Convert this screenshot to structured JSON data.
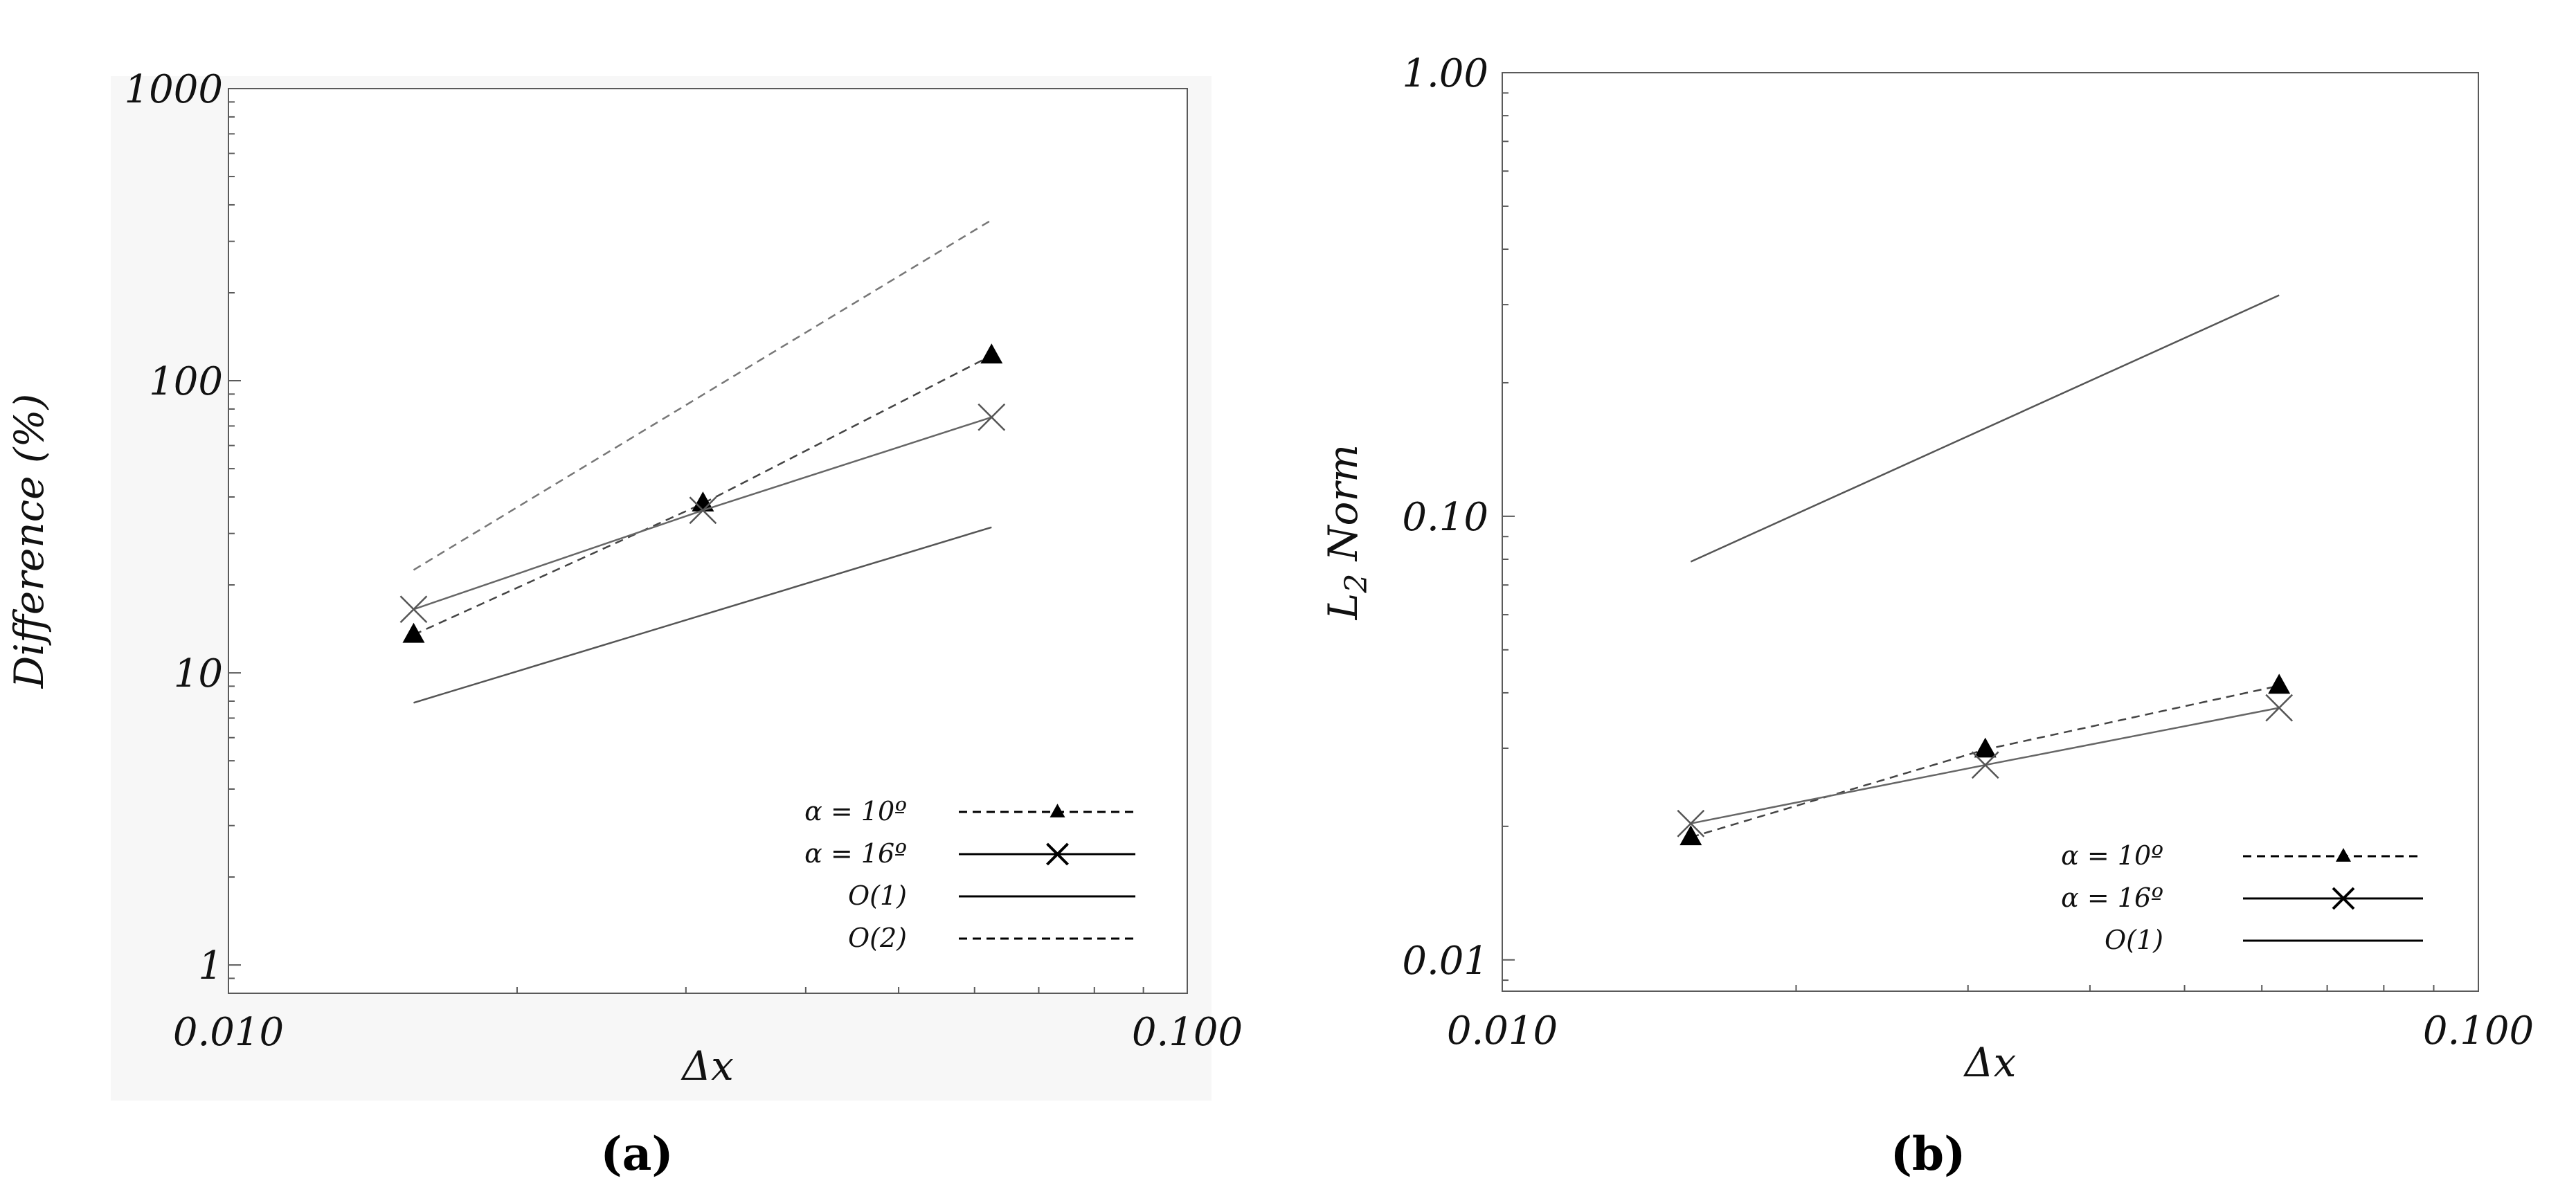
{
  "chart_data": [
    {
      "type": "line",
      "panel_label": "(a)",
      "xlabel": "Δx",
      "ylabel": "Difference (%)",
      "x_scale": "log",
      "y_scale": "log",
      "xlim": [
        0.01,
        0.1
      ],
      "ylim": [
        0.8,
        1000
      ],
      "x_ticks": [
        0.01,
        0.1
      ],
      "x_tick_labels": [
        "0.010",
        "0.100"
      ],
      "y_ticks": [
        1,
        10,
        100,
        1000
      ],
      "y_tick_labels": [
        "1",
        "10",
        "100",
        "1000"
      ],
      "grid": false,
      "legend_position": "bottom-right",
      "series": [
        {
          "name": "α = 10º",
          "style": "dashed",
          "marker": "triangle",
          "color": "#000000",
          "x": [
            0.0156,
            0.03125,
            0.0625
          ],
          "y": [
            13.5,
            38,
            122
          ]
        },
        {
          "name": "α = 16º",
          "style": "solid",
          "marker": "x",
          "color": "#666666",
          "x": [
            0.0156,
            0.03125,
            0.0625
          ],
          "y": [
            16.5,
            36,
            75
          ]
        },
        {
          "name": "O(1)",
          "style": "solid",
          "marker": "none",
          "color": "#555555",
          "x": [
            0.0156,
            0.0625
          ],
          "y": [
            7.9,
            31.5
          ]
        },
        {
          "name": "O(2)",
          "style": "dashed",
          "marker": "none",
          "color": "#777777",
          "x": [
            0.0156,
            0.0625
          ],
          "y": [
            22.5,
            355
          ]
        }
      ]
    },
    {
      "type": "line",
      "panel_label": "(b)",
      "xlabel": "Δx",
      "ylabel": "L2 Norm",
      "ylabel_main": "L",
      "ylabel_sub": "2",
      "ylabel_rest": " Norm",
      "x_scale": "log",
      "y_scale": "log",
      "xlim": [
        0.01,
        0.1
      ],
      "ylim": [
        0.0085,
        1.0
      ],
      "x_ticks": [
        0.01,
        0.1
      ],
      "x_tick_labels": [
        "0.010",
        "0.100"
      ],
      "y_ticks": [
        0.01,
        0.1,
        1.0
      ],
      "y_tick_labels": [
        "0.01",
        "0.10",
        "1.00"
      ],
      "grid": false,
      "legend_position": "bottom-right",
      "series": [
        {
          "name": "α = 10º",
          "style": "dashed",
          "marker": "triangle",
          "color": "#000000",
          "x": [
            0.0156,
            0.03125,
            0.0625
          ],
          "y": [
            0.0189,
            0.0298,
            0.0415
          ]
        },
        {
          "name": "α = 16º",
          "style": "solid",
          "marker": "x",
          "color": "#666666",
          "x": [
            0.0156,
            0.03125,
            0.0625
          ],
          "y": [
            0.0203,
            0.0275,
            0.037
          ]
        },
        {
          "name": "O(1)",
          "style": "solid",
          "marker": "none",
          "color": "#555555",
          "x": [
            0.0156,
            0.0625
          ],
          "y": [
            0.079,
            0.315
          ]
        }
      ]
    }
  ]
}
